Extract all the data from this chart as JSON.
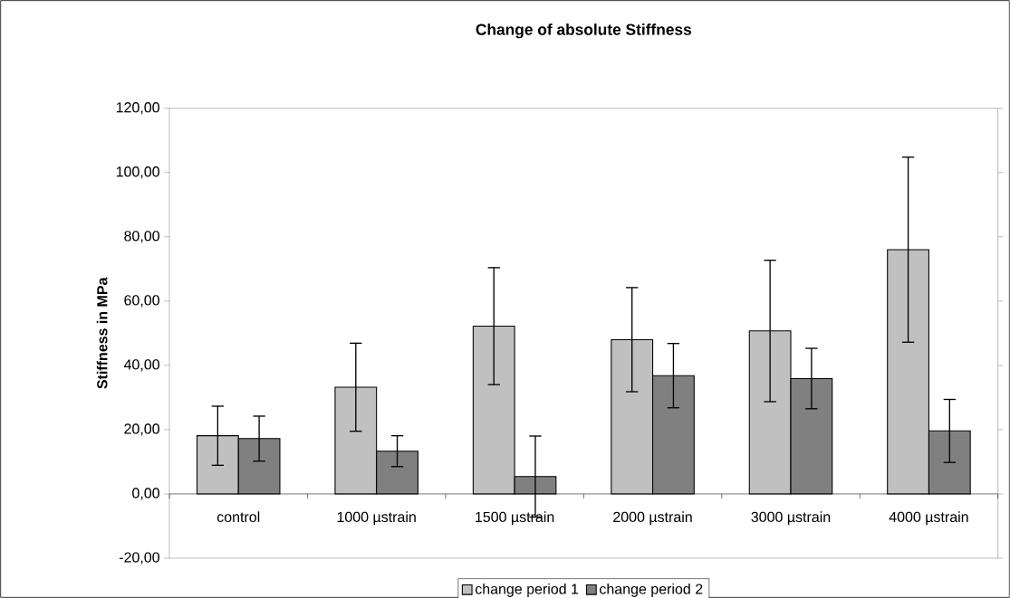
{
  "chart_data": {
    "type": "bar",
    "title": "Change of absolute Stiffness",
    "ylabel": "Stiffness in MPa",
    "categories": [
      "control",
      "1000 µstrain",
      "1500 µstrain",
      "2000 µstrain",
      "3000 µstrain",
      "4000 µstrain"
    ],
    "series": [
      {
        "name": "change period 1",
        "color": "#c0c0c0",
        "values": [
          18.1,
          33.2,
          52.2,
          48.0,
          50.7,
          76.0
        ],
        "errors": [
          9.2,
          13.7,
          18.2,
          16.2,
          22.0,
          28.8
        ]
      },
      {
        "name": "change period 2",
        "color": "#808080",
        "values": [
          17.2,
          13.3,
          5.4,
          36.8,
          35.9,
          19.6
        ],
        "errors": [
          7.0,
          4.8,
          12.6,
          10.0,
          9.4,
          9.8
        ]
      }
    ],
    "ylim": [
      -20,
      120
    ],
    "yticks": [
      {
        "value": -20,
        "label": "-20,00"
      },
      {
        "value": 0,
        "label": "0,00"
      },
      {
        "value": 20,
        "label": "20,00"
      },
      {
        "value": 40,
        "label": "40,00"
      },
      {
        "value": 60,
        "label": "60,00"
      },
      {
        "value": 80,
        "label": "80,00"
      },
      {
        "value": 100,
        "label": "100,00"
      },
      {
        "value": 120,
        "label": "120,00"
      }
    ],
    "legend": "bottom"
  }
}
